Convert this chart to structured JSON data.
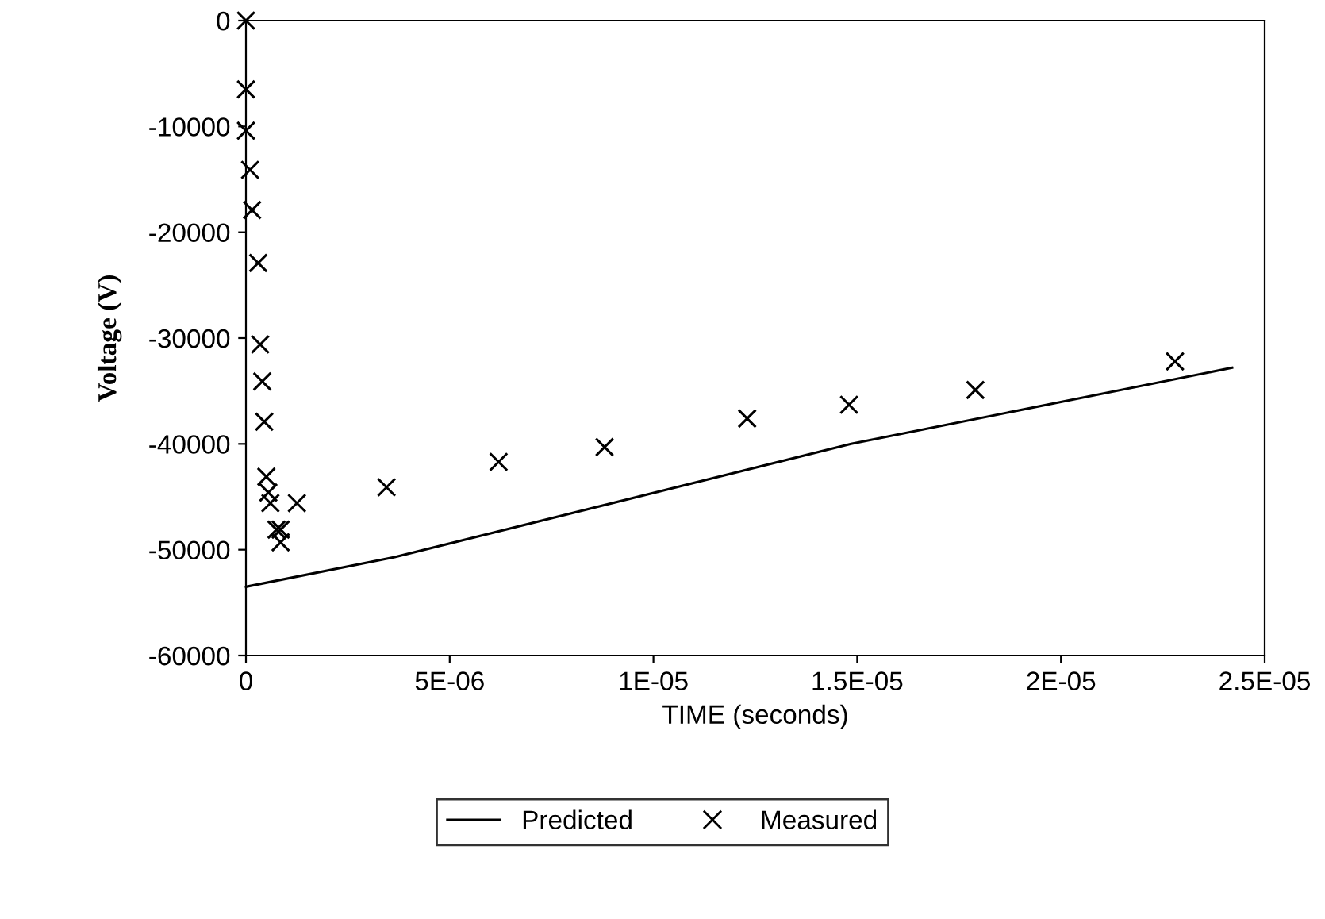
{
  "chart_data": {
    "type": "scatter",
    "xlabel": "TIME (seconds)",
    "ylabel": "Voltage (V)",
    "xlim": [
      0,
      2.5e-05
    ],
    "ylim": [
      -60000,
      0
    ],
    "xticks": [
      0,
      {
        "value": 5e-06,
        "label": "5E-06"
      },
      {
        "value": 1e-05,
        "label": "1E-05"
      },
      {
        "value": 1.5e-05,
        "label": "1.5E-05"
      },
      {
        "value": 2e-05,
        "label": "2E-05"
      },
      {
        "value": 2.5e-05,
        "label": "2.5E-05"
      }
    ],
    "yticks": [
      -60000,
      -50000,
      -40000,
      -30000,
      -20000,
      -10000,
      0
    ],
    "grid": false,
    "legend": "bottom",
    "series": [
      {
        "name": "Predicted",
        "type": "line",
        "color": "#000000",
        "marker": "none",
        "line_style": "solid",
        "x": [
          0,
          3.65e-06,
          1.485e-05,
          2.42e-05
        ],
        "values": [
          -53500,
          -50700,
          -40000,
          -32800
        ]
      },
      {
        "name": "Measured",
        "color": "#000000",
        "marker": "cross",
        "x": [
          0,
          0,
          0,
          1e-07,
          1.5e-07,
          3e-07,
          3.5e-07,
          4e-07,
          4.5e-07,
          5e-07,
          5.5e-07,
          6e-07,
          1.25e-06,
          7.5e-07,
          8.5e-07,
          8.5e-07,
          3.45e-06,
          6.2e-06,
          8.8e-06,
          1.23e-05,
          1.48e-05,
          1.79e-05,
          2.28e-05
        ],
        "values": [
          0,
          -6500,
          -10400,
          -14100,
          -17900,
          -22900,
          -30600,
          -34100,
          -37900,
          -43100,
          -44600,
          -45600,
          -45600,
          -48100,
          -48100,
          -49300,
          -44100,
          -41700,
          -40300,
          -37600,
          -36300,
          -34900,
          -32200
        ]
      }
    ]
  }
}
